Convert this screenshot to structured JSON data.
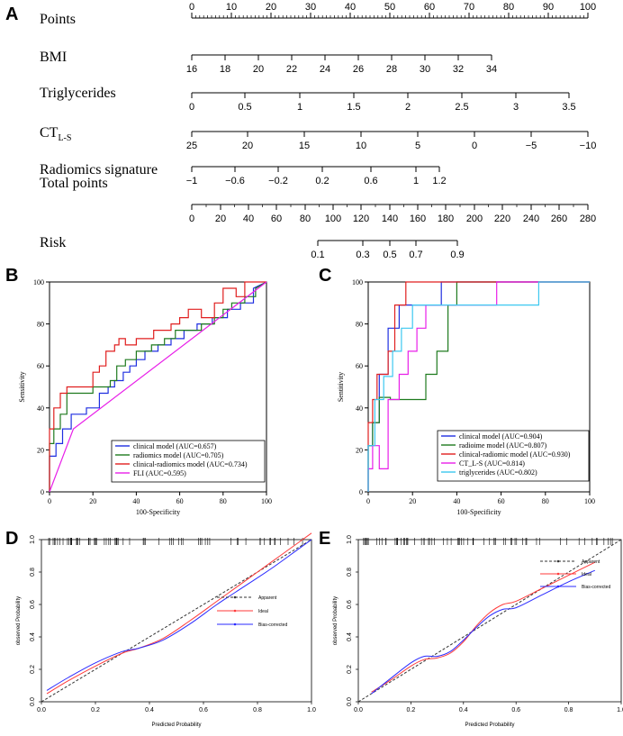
{
  "figure": {
    "panel_labels": [
      "A",
      "B",
      "C",
      "D",
      "E"
    ]
  },
  "chart_data": [
    {
      "panel": "A",
      "type": "nomogram",
      "rows": [
        {
          "label": "Points",
          "sub": "",
          "ticks": [
            "0",
            "10",
            "20",
            "30",
            "40",
            "50",
            "60",
            "70",
            "80",
            "90",
            "100"
          ]
        },
        {
          "label": "BMI",
          "sub": "",
          "ticks": [
            "16",
            "18",
            "20",
            "22",
            "24",
            "26",
            "28",
            "30",
            "32",
            "34"
          ]
        },
        {
          "label": "Triglycerides",
          "sub": "",
          "ticks": [
            "0",
            "0.5",
            "1",
            "1.5",
            "2",
            "2.5",
            "3",
            "3.5"
          ]
        },
        {
          "label": "CT",
          "sub": "L-S",
          "ticks": [
            "25",
            "20",
            "15",
            "10",
            "5",
            "0",
            "−5",
            "−10"
          ]
        },
        {
          "label": "Radiomics signature",
          "sub": "",
          "ticks": [
            "−1",
            "−0.6",
            "−0.2",
            "0.2",
            "0.6",
            "1",
            "1.2"
          ]
        },
        {
          "label": "Total  points",
          "sub": "",
          "ticks": [
            "0",
            "20",
            "40",
            "60",
            "80",
            "100",
            "120",
            "140",
            "160",
            "180",
            "200",
            "220",
            "240",
            "260",
            "280"
          ]
        },
        {
          "label": "Risk",
          "sub": "",
          "ticks": [
            "0.1",
            "0.3",
            "0.5",
            "0.7",
            "0.9"
          ]
        }
      ]
    },
    {
      "panel": "B",
      "type": "line",
      "xlabel": "100-Specificity",
      "ylabel": "Sensitivity",
      "xlim": [
        0,
        100
      ],
      "ylim": [
        0,
        100
      ],
      "ticks": [
        "0",
        "20",
        "40",
        "60",
        "80",
        "100"
      ],
      "series": [
        {
          "name": "clinical model (AUC=0.657)",
          "color": "#1f2fe0",
          "x": [
            0,
            0,
            3,
            3,
            6,
            6,
            10,
            10,
            17,
            17,
            23,
            23,
            27,
            27,
            30,
            30,
            34,
            34,
            37,
            37,
            40,
            40,
            44,
            44,
            50,
            50,
            56,
            56,
            62,
            62,
            68,
            68,
            75,
            75,
            82,
            82,
            88,
            88,
            94,
            94,
            100
          ],
          "y": [
            0,
            17,
            17,
            23,
            23,
            30,
            30,
            37,
            37,
            40,
            40,
            47,
            47,
            50,
            50,
            53,
            53,
            57,
            57,
            60,
            60,
            63,
            63,
            67,
            67,
            70,
            70,
            73,
            73,
            77,
            77,
            80,
            80,
            83,
            83,
            87,
            87,
            90,
            90,
            97,
            100
          ]
        },
        {
          "name": "radiomics model (AUC=0.705)",
          "color": "#1e7a1e",
          "x": [
            0,
            0,
            2,
            2,
            5,
            5,
            8,
            8,
            20,
            20,
            28,
            28,
            31,
            31,
            35,
            35,
            40,
            40,
            47,
            47,
            53,
            53,
            58,
            58,
            70,
            70,
            76,
            76,
            80,
            80,
            84,
            84,
            90,
            90,
            95,
            95,
            100
          ],
          "y": [
            0,
            23,
            23,
            30,
            30,
            37,
            37,
            47,
            47,
            50,
            50,
            53,
            53,
            60,
            60,
            63,
            63,
            67,
            67,
            70,
            70,
            73,
            73,
            77,
            77,
            80,
            80,
            83,
            83,
            87,
            87,
            90,
            90,
            93,
            93,
            97,
            100
          ]
        },
        {
          "name": "clinical-radiomics model (AUC=0.734)",
          "color": "#e01f1f",
          "x": [
            0,
            0,
            2,
            2,
            5,
            5,
            8,
            8,
            20,
            20,
            23,
            23,
            26,
            26,
            30,
            30,
            32,
            32,
            35,
            35,
            40,
            40,
            48,
            48,
            56,
            56,
            60,
            60,
            64,
            64,
            70,
            70,
            76,
            76,
            80,
            80,
            86,
            86,
            90,
            90,
            100
          ],
          "y": [
            0,
            30,
            30,
            40,
            40,
            47,
            47,
            50,
            50,
            57,
            57,
            60,
            60,
            67,
            67,
            70,
            70,
            73,
            73,
            70,
            70,
            73,
            73,
            77,
            77,
            80,
            80,
            83,
            83,
            87,
            87,
            83,
            83,
            90,
            90,
            97,
            97,
            93,
            93,
            100,
            100
          ]
        },
        {
          "name": "FLI (AUC=0.595)",
          "color": "#e81fe8",
          "x": [
            0,
            11,
            100
          ],
          "y": [
            0,
            30,
            100
          ]
        }
      ]
    },
    {
      "panel": "C",
      "type": "line",
      "xlabel": "100-Specificity",
      "ylabel": "Sentitivity",
      "xlim": [
        0,
        100
      ],
      "ylim": [
        0,
        100
      ],
      "ticks": [
        "0",
        "20",
        "40",
        "60",
        "80",
        "100"
      ],
      "series": [
        {
          "name": "clinical model (AUC=0.904)",
          "color": "#1f2fe0",
          "x": [
            0,
            0,
            2,
            2,
            5,
            5,
            9,
            9,
            14,
            14,
            33,
            33,
            100
          ],
          "y": [
            0,
            22,
            22,
            33,
            33,
            56,
            56,
            78,
            78,
            89,
            89,
            100,
            100
          ]
        },
        {
          "name": "radioime model (AUC=0.807)",
          "color": "#1e7a1e",
          "x": [
            0,
            0,
            2,
            2,
            5,
            5,
            10,
            10,
            26,
            26,
            31,
            31,
            36,
            36,
            40,
            40,
            100
          ],
          "y": [
            0,
            22,
            22,
            33,
            33,
            45,
            45,
            44,
            44,
            56,
            56,
            67,
            67,
            89,
            89,
            100,
            100
          ]
        },
        {
          "name": "clinical-radiomic model (AUC=0.930)",
          "color": "#e01f1f",
          "x": [
            0,
            0,
            2,
            2,
            4,
            4,
            9,
            9,
            12,
            12,
            17,
            17,
            100
          ],
          "y": [
            0,
            33,
            33,
            44,
            44,
            56,
            56,
            67,
            67,
            89,
            89,
            100,
            100
          ]
        },
        {
          "name": "CT_L-S (AUC=0.814)",
          "color": "#e81fe8",
          "x": [
            0,
            0,
            2,
            2,
            5,
            5,
            9,
            9,
            14,
            14,
            18,
            18,
            22,
            22,
            26,
            26,
            58,
            58,
            100
          ],
          "y": [
            0,
            11,
            11,
            22,
            22,
            11,
            11,
            44,
            44,
            56,
            56,
            67,
            67,
            78,
            78,
            89,
            89,
            100,
            100
          ]
        },
        {
          "name": "triglycerides (AUC=0.802)",
          "color": "#3cc8f0",
          "x": [
            0,
            0,
            3,
            3,
            7,
            7,
            11,
            11,
            15,
            15,
            20,
            20,
            36,
            36,
            61,
            61,
            77,
            77,
            100
          ],
          "y": [
            0,
            22,
            22,
            44,
            44,
            55,
            55,
            67,
            67,
            78,
            78,
            89,
            89,
            89,
            89,
            89,
            89,
            100,
            100
          ]
        }
      ]
    },
    {
      "panel": "D",
      "type": "line",
      "xlabel": "Predicted Probability",
      "ylabel": "observed Probability",
      "xlim": [
        0,
        1.0
      ],
      "ylim": [
        0,
        1.0
      ],
      "xticks": [
        "0.0",
        "0.2",
        "0.4",
        "0.6",
        "0.8",
        "1.0"
      ],
      "yticks": [
        "0.0",
        "0.2",
        "0.4",
        "0.6",
        "0.8",
        "1.0"
      ],
      "series": [
        {
          "name": "Apparent",
          "color": "#333333",
          "dash": true,
          "x": [
            0.0,
            1.0
          ],
          "y": [
            0.0,
            1.0
          ]
        },
        {
          "name": "Ideal",
          "color": "#ff3a3a",
          "x": [
            0.02,
            0.1,
            0.2,
            0.3,
            0.36,
            0.45,
            0.55,
            0.65,
            0.75,
            0.85,
            0.95,
            1.0
          ],
          "y": [
            0.05,
            0.13,
            0.22,
            0.3,
            0.33,
            0.39,
            0.5,
            0.62,
            0.74,
            0.86,
            0.98,
            1.04
          ]
        },
        {
          "name": "Bias-corrected",
          "color": "#2a2aff",
          "x": [
            0.02,
            0.1,
            0.2,
            0.3,
            0.36,
            0.45,
            0.55,
            0.65,
            0.75,
            0.85,
            0.95,
            1.0
          ],
          "y": [
            0.07,
            0.15,
            0.24,
            0.31,
            0.33,
            0.38,
            0.48,
            0.6,
            0.71,
            0.82,
            0.94,
            1.0
          ]
        }
      ]
    },
    {
      "panel": "E",
      "type": "line",
      "xlabel": "Predicted Probability",
      "ylabel": "observed Probability",
      "xlim": [
        0,
        1.0
      ],
      "ylim": [
        0,
        1.0
      ],
      "xticks": [
        "0.0",
        "0.2",
        "0.4",
        "0.6",
        "0.8",
        "1.0"
      ],
      "yticks": [
        "0.0",
        "0.2",
        "0.4",
        "0.6",
        "0.8",
        "1.0"
      ],
      "series": [
        {
          "name": "Apparent",
          "color": "#333333",
          "dash": true,
          "x": [
            0.0,
            1.0
          ],
          "y": [
            0.0,
            1.0
          ]
        },
        {
          "name": "Ideal",
          "color": "#ff3a3a",
          "x": [
            0.05,
            0.12,
            0.2,
            0.25,
            0.3,
            0.35,
            0.4,
            0.45,
            0.5,
            0.55,
            0.6,
            0.7,
            0.8,
            0.9
          ],
          "y": [
            0.06,
            0.13,
            0.22,
            0.26,
            0.27,
            0.3,
            0.37,
            0.47,
            0.55,
            0.6,
            0.62,
            0.7,
            0.78,
            0.86
          ]
        },
        {
          "name": "Bias-corrected",
          "color": "#2a2aff",
          "x": [
            0.05,
            0.12,
            0.2,
            0.25,
            0.3,
            0.35,
            0.4,
            0.45,
            0.5,
            0.55,
            0.6,
            0.7,
            0.8,
            0.9
          ],
          "y": [
            0.05,
            0.14,
            0.24,
            0.28,
            0.28,
            0.31,
            0.38,
            0.46,
            0.53,
            0.57,
            0.58,
            0.66,
            0.74,
            0.81
          ]
        }
      ]
    }
  ]
}
